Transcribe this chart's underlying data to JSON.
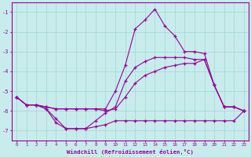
{
  "xlabel": "Windchill (Refroidissement éolien,°C)",
  "bg_color": "#c8ecec",
  "line_color": "#990099",
  "grid_color": "#a8d8d8",
  "xlim": [
    -0.5,
    23.5
  ],
  "ylim": [
    -7.5,
    -0.5
  ],
  "yticks": [
    -7,
    -6,
    -5,
    -4,
    -3,
    -2,
    -1
  ],
  "xticks": [
    0,
    1,
    2,
    3,
    4,
    5,
    6,
    7,
    8,
    9,
    10,
    11,
    12,
    13,
    14,
    15,
    16,
    17,
    18,
    19,
    20,
    21,
    22,
    23
  ],
  "curves": [
    [
      -5.3,
      -5.7,
      -5.7,
      -5.9,
      -6.6,
      -6.9,
      -6.9,
      -6.9,
      -6.8,
      -6.7,
      -6.5,
      -6.5,
      -6.5,
      -6.5,
      -6.5,
      -6.5,
      -6.5,
      -6.5,
      -6.5,
      -6.5,
      -6.5,
      -6.5,
      -6.5,
      -6.0
    ],
    [
      -5.3,
      -5.7,
      -5.7,
      -5.9,
      -6.4,
      -6.9,
      -6.9,
      -6.9,
      -6.5,
      -6.1,
      -5.8,
      -4.5,
      -3.8,
      -3.5,
      -3.3,
      -3.3,
      -3.3,
      -3.3,
      -3.4,
      -3.4,
      -4.7,
      -5.8,
      -5.8,
      -6.0
    ],
    [
      -5.3,
      -5.7,
      -5.7,
      -5.8,
      -5.9,
      -5.9,
      -5.9,
      -5.9,
      -5.9,
      -6.0,
      -5.9,
      -5.3,
      -4.6,
      -4.2,
      -4.0,
      -3.8,
      -3.7,
      -3.6,
      -3.6,
      -3.4,
      -4.7,
      -5.8,
      -5.8,
      -6.0
    ],
    [
      -5.3,
      -5.7,
      -5.7,
      -5.8,
      -5.9,
      -5.9,
      -5.9,
      -5.9,
      -5.9,
      -5.9,
      -5.0,
      -3.7,
      -1.85,
      -1.4,
      -0.85,
      -1.7,
      -2.2,
      -3.0,
      -3.0,
      -3.1,
      -4.7,
      -5.8,
      -5.8,
      -6.0
    ]
  ]
}
